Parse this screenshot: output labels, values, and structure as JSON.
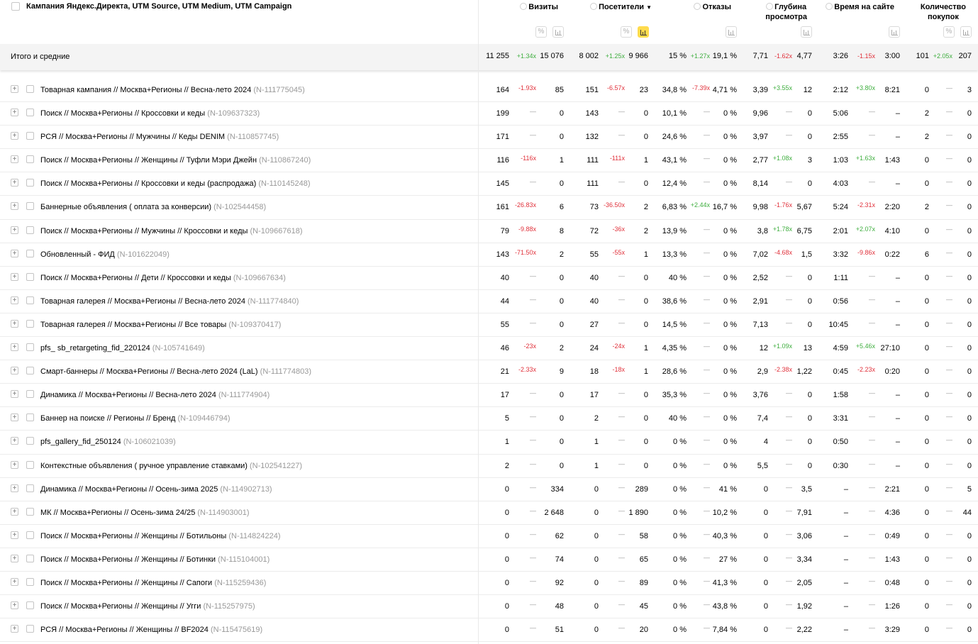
{
  "header": {
    "dimension_title": "Кампания Яндекс.Директа, UTM Source, UTM Medium, UTM Campaign",
    "metrics": [
      {
        "label": "Визиты"
      },
      {
        "label": "Посетители",
        "sort": "▼"
      },
      {
        "label": "Отказы"
      },
      {
        "label": "Глубина",
        "label2": "просмотра"
      },
      {
        "label": "Время на сайте"
      },
      {
        "label": "Количество",
        "label2": "покупок"
      }
    ],
    "percent_icon": "%"
  },
  "totals": {
    "label": "Итого и средние",
    "cells": [
      "11 255",
      "+1.34x",
      "15 076",
      "8 002",
      "+1.25x",
      "9 966",
      "15 %",
      "+1.27x",
      "19,1 %",
      "7,71",
      "-1.62x",
      "4,77",
      "3:26",
      "-1.15x",
      "3:00",
      "101",
      "+2.05x",
      "207"
    ]
  },
  "rows": [
    {
      "name": "Товарная кампания // Москва+Регионы // Весна-лето 2024",
      "id": "(N-111775045)",
      "cells": [
        "164",
        "-1.93x",
        "85",
        "151",
        "-6.57x",
        "23",
        "34,8 %",
        "-7.39x",
        "4,71 %",
        "3,39",
        "+3.55x",
        "12",
        "2:12",
        "+3.80x",
        "8:21",
        "0",
        "—",
        "3"
      ]
    },
    {
      "name": "Поиск // Москва+Регионы // Кроссовки и кеды",
      "id": "(N-109637323)",
      "cells": [
        "199",
        "—",
        "0",
        "143",
        "—",
        "0",
        "10,1 %",
        "—",
        "0 %",
        "9,96",
        "—",
        "0",
        "5:06",
        "—",
        "–",
        "2",
        "—",
        "0"
      ]
    },
    {
      "name": "РСЯ // Москва+Регионы // Мужчины // Кеды DENIM",
      "id": "(N-110857745)",
      "cells": [
        "171",
        "—",
        "0",
        "132",
        "—",
        "0",
        "24,6 %",
        "—",
        "0 %",
        "3,97",
        "—",
        "0",
        "2:55",
        "—",
        "–",
        "2",
        "—",
        "0"
      ]
    },
    {
      "name": "Поиск // Москва+Регионы // Женщины // Туфли Мэри Джейн",
      "id": "(N-110867240)",
      "cells": [
        "116",
        "-116x",
        "1",
        "111",
        "-111x",
        "1",
        "43,1 %",
        "—",
        "0 %",
        "2,77",
        "+1.08x",
        "3",
        "1:03",
        "+1.63x",
        "1:43",
        "0",
        "—",
        "0"
      ]
    },
    {
      "name": "Поиск // Москва+Регионы // Кроссовки и кеды (распродажа)",
      "id": "(N-110145248)",
      "cells": [
        "145",
        "—",
        "0",
        "111",
        "—",
        "0",
        "12,4 %",
        "—",
        "0 %",
        "8,14",
        "—",
        "0",
        "4:03",
        "—",
        "–",
        "0",
        "—",
        "0"
      ]
    },
    {
      "name": "Баннерные объявления ( оплата за конверсии)",
      "id": "(N-102544458)",
      "cells": [
        "161",
        "-26.83x",
        "6",
        "73",
        "-36.50x",
        "2",
        "6,83 %",
        "+2.44x",
        "16,7 %",
        "9,98",
        "-1.76x",
        "5,67",
        "5:24",
        "-2.31x",
        "2:20",
        "2",
        "—",
        "0"
      ]
    },
    {
      "name": "Поиск // Москва+Регионы // Мужчины // Кроссовки и кеды",
      "id": "(N-109667618)",
      "cells": [
        "79",
        "-9.88x",
        "8",
        "72",
        "-36x",
        "2",
        "13,9 %",
        "—",
        "0 %",
        "3,8",
        "+1.78x",
        "6,75",
        "2:01",
        "+2.07x",
        "4:10",
        "0",
        "—",
        "0"
      ]
    },
    {
      "name": "Обновленный - ФИД",
      "id": "(N-101622049)",
      "cells": [
        "143",
        "-71.50x",
        "2",
        "55",
        "-55x",
        "1",
        "13,3 %",
        "—",
        "0 %",
        "7,02",
        "-4.68x",
        "1,5",
        "3:32",
        "-9.86x",
        "0:22",
        "6",
        "—",
        "0"
      ]
    },
    {
      "name": "Поиск // Москва+Регионы // Дети // Кроссовки и кеды",
      "id": "(N-109667634)",
      "cells": [
        "40",
        "—",
        "0",
        "40",
        "—",
        "0",
        "40 %",
        "—",
        "0 %",
        "2,52",
        "—",
        "0",
        "1:11",
        "—",
        "–",
        "0",
        "—",
        "0"
      ]
    },
    {
      "name": "Товарная галерея // Москва+Регионы // Весна-лето 2024",
      "id": "(N-111774840)",
      "cells": [
        "44",
        "—",
        "0",
        "40",
        "—",
        "0",
        "38,6 %",
        "—",
        "0 %",
        "2,91",
        "—",
        "0",
        "0:56",
        "—",
        "–",
        "0",
        "—",
        "0"
      ]
    },
    {
      "name": "Товарная галерея // Москва+Регионы // Все товары",
      "id": "(N-109370417)",
      "cells": [
        "55",
        "—",
        "0",
        "27",
        "—",
        "0",
        "14,5 %",
        "—",
        "0 %",
        "7,13",
        "—",
        "0",
        "10:45",
        "—",
        "–",
        "0",
        "—",
        "0"
      ]
    },
    {
      "name": "pfs_ sb_retargeting_fid_220124",
      "id": "(N-105741649)",
      "cells": [
        "46",
        "-23x",
        "2",
        "24",
        "-24x",
        "1",
        "4,35 %",
        "—",
        "0 %",
        "12",
        "+1.09x",
        "13",
        "4:59",
        "+5.46x",
        "27:10",
        "0",
        "—",
        "0"
      ]
    },
    {
      "name": "Смарт-баннеры // Москва+Регионы // Весна-лето 2024 (LaL)",
      "id": "(N-111774803)",
      "cells": [
        "21",
        "-2.33x",
        "9",
        "18",
        "-18x",
        "1",
        "28,6 %",
        "—",
        "0 %",
        "2,9",
        "-2.38x",
        "1,22",
        "0:45",
        "-2.23x",
        "0:20",
        "0",
        "—",
        "0"
      ]
    },
    {
      "name": "Динамика // Москва+Регионы // Весна-лето 2024",
      "id": "(N-111774904)",
      "cells": [
        "17",
        "—",
        "0",
        "17",
        "—",
        "0",
        "35,3 %",
        "—",
        "0 %",
        "3,76",
        "—",
        "0",
        "1:58",
        "—",
        "–",
        "0",
        "—",
        "0"
      ]
    },
    {
      "name": "Баннер на поиске // Регионы // Бренд",
      "id": "(N-109446794)",
      "cells": [
        "5",
        "—",
        "0",
        "2",
        "—",
        "0",
        "40 %",
        "—",
        "0 %",
        "7,4",
        "—",
        "0",
        "3:31",
        "—",
        "–",
        "0",
        "—",
        "0"
      ]
    },
    {
      "name": "pfs_gallery_fid_250124",
      "id": "(N-106021039)",
      "cells": [
        "1",
        "—",
        "0",
        "1",
        "—",
        "0",
        "0 %",
        "—",
        "0 %",
        "4",
        "—",
        "0",
        "0:50",
        "—",
        "–",
        "0",
        "—",
        "0"
      ]
    },
    {
      "name": "Контекстные объявления ( ручное управление ставками)",
      "id": "(N-102541227)",
      "cells": [
        "2",
        "—",
        "0",
        "1",
        "—",
        "0",
        "0 %",
        "—",
        "0 %",
        "5,5",
        "—",
        "0",
        "0:30",
        "—",
        "–",
        "0",
        "—",
        "0"
      ]
    },
    {
      "name": "Динамика // Москва+Регионы // Осень-зима 2025",
      "id": "(N-114902713)",
      "cells": [
        "0",
        "—",
        "334",
        "0",
        "—",
        "289",
        "0 %",
        "—",
        "41 %",
        "0",
        "—",
        "3,5",
        "–",
        "—",
        "2:21",
        "0",
        "—",
        "5"
      ]
    },
    {
      "name": "МК // Москва+Регионы // Осень-зима 24/25",
      "id": "(N-114903001)",
      "cells": [
        "0",
        "—",
        "2 648",
        "0",
        "—",
        "1 890",
        "0 %",
        "—",
        "10,2 %",
        "0",
        "—",
        "7,91",
        "–",
        "—",
        "4:36",
        "0",
        "—",
        "44"
      ]
    },
    {
      "name": "Поиск // Москва+Регионы // Женщины // Ботильоны",
      "id": "(N-114824224)",
      "cells": [
        "0",
        "—",
        "62",
        "0",
        "—",
        "58",
        "0 %",
        "—",
        "40,3 %",
        "0",
        "—",
        "3,06",
        "–",
        "—",
        "0:49",
        "0",
        "—",
        "0"
      ]
    },
    {
      "name": "Поиск // Москва+Регионы // Женщины // Ботинки",
      "id": "(N-115104001)",
      "cells": [
        "0",
        "—",
        "74",
        "0",
        "—",
        "65",
        "0 %",
        "—",
        "27 %",
        "0",
        "—",
        "3,34",
        "–",
        "—",
        "1:43",
        "0",
        "—",
        "0"
      ]
    },
    {
      "name": "Поиск // Москва+Регионы // Женщины // Сапоги",
      "id": "(N-115259436)",
      "cells": [
        "0",
        "—",
        "92",
        "0",
        "—",
        "89",
        "0 %",
        "—",
        "41,3 %",
        "0",
        "—",
        "2,05",
        "–",
        "—",
        "0:48",
        "0",
        "—",
        "0"
      ]
    },
    {
      "name": "Поиск // Москва+Регионы // Женщины // Угги",
      "id": "(N-115257975)",
      "cells": [
        "0",
        "—",
        "48",
        "0",
        "—",
        "45",
        "0 %",
        "—",
        "43,8 %",
        "0",
        "—",
        "1,92",
        "–",
        "—",
        "1:26",
        "0",
        "—",
        "0"
      ]
    },
    {
      "name": "РСЯ // Москва+Регионы // Женщины // BF2024",
      "id": "(N-115475619)",
      "cells": [
        "0",
        "—",
        "51",
        "0",
        "—",
        "20",
        "0 %",
        "—",
        "7,84 %",
        "0",
        "—",
        "2,22",
        "–",
        "—",
        "3:29",
        "0",
        "—",
        "0"
      ]
    }
  ],
  "colors": {
    "increase": "#3fae3f",
    "decrease": "#e0303a",
    "toggle_active": "#ffdb4d",
    "totals_bg": "#f4f4f4"
  }
}
